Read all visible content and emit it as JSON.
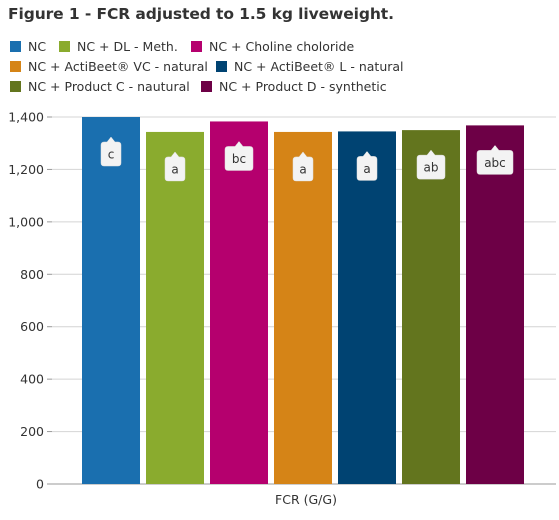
{
  "title": "Figure 1 - FCR adjusted to 1.5 kg liveweight.",
  "chart_data": {
    "type": "bar",
    "title": "Figure 1 - FCR adjusted to 1.5 kg liveweight.",
    "xlabel": "FCR (G/G)",
    "ylabel": "",
    "ylim": [
      0,
      1400
    ],
    "yticks": [
      0,
      200,
      400,
      600,
      800,
      1000,
      1200,
      1400
    ],
    "ytick_labels": [
      "0",
      "200",
      "400",
      "600",
      "800",
      "1,000",
      "1,200",
      "1,400"
    ],
    "grid": true,
    "legend_position": "top",
    "series": [
      {
        "name": "NC",
        "value": 1400,
        "color": "#1a6faf",
        "label": "c"
      },
      {
        "name": "NC + DL - Meth.",
        "value": 1343,
        "color": "#8aab2e",
        "label": "a"
      },
      {
        "name": "NC + Choline choloride",
        "value": 1383,
        "color": "#b5006e",
        "label": "bc"
      },
      {
        "name": "NC + ActiBeet® VC - natural",
        "value": 1343,
        "color": "#d58417",
        "label": "a"
      },
      {
        "name": "NC + ActiBeet® L - natural",
        "value": 1345,
        "color": "#004372",
        "label": "a"
      },
      {
        "name": "NC + Product C - nautural",
        "value": 1350,
        "color": "#63751e",
        "label": "ab"
      },
      {
        "name": "NC + Product D - synthetic",
        "value": 1368,
        "color": "#6d0046",
        "label": "abc"
      }
    ]
  }
}
